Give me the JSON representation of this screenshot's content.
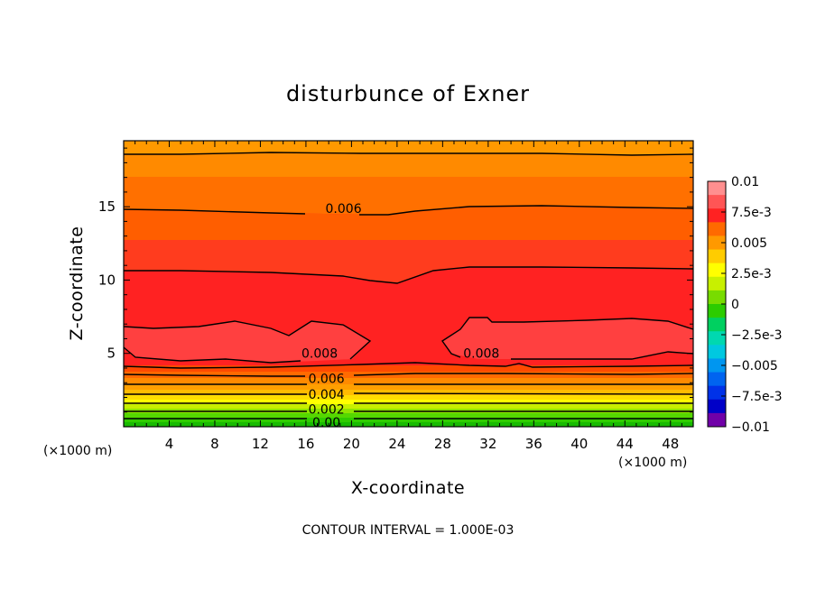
{
  "chart_data": {
    "type": "heatmap",
    "title": "disturbunce of Exner",
    "xlabel": "X-coordinate",
    "ylabel": "Z-coordinate",
    "x_unit": "(×1000 m)",
    "z_unit": "(×1000 m)",
    "xlim": [
      0,
      50
    ],
    "ylim": [
      0,
      19.5
    ],
    "x_ticks": [
      4,
      8,
      12,
      16,
      20,
      24,
      28,
      32,
      36,
      40,
      44,
      48
    ],
    "y_ticks": [
      5,
      10,
      15
    ],
    "colorbar": {
      "min": -0.01,
      "max": 0.01,
      "step": 0.00125,
      "tick_labels": [
        "0.01",
        "7.5e-3",
        "0.005",
        "2.5e-3",
        "0",
        "−2.5e-3",
        "−0.005",
        "−7.5e-3",
        "−0.01"
      ],
      "bands_top_to_bottom": [
        "#ff8f8f",
        "#ff5555",
        "#ff2222",
        "#ff6a00",
        "#ff9900",
        "#ffcc00",
        "#ffff00",
        "#c8f000",
        "#78dc00",
        "#2ccc00",
        "#00d060",
        "#00d8b0",
        "#00c8e0",
        "#0096f0",
        "#0064f0",
        "#0032e8",
        "#0000c8",
        "#7000a8"
      ]
    },
    "contour_levels": [
      0.0,
      0.001,
      0.002,
      0.003,
      0.004,
      0.005,
      0.006,
      0.007,
      0.008
    ],
    "contour_labels": [
      {
        "value": "0.006",
        "x": 19.3,
        "z": 14.9
      },
      {
        "value": "0.008",
        "x": 17.2,
        "z": 5.0
      },
      {
        "value": "0.008",
        "x": 31.4,
        "z": 5.0
      },
      {
        "value": "0.006",
        "x": 17.8,
        "z": 3.3
      },
      {
        "value": "0.004",
        "x": 17.8,
        "z": 2.2
      },
      {
        "value": "0.002",
        "x": 17.8,
        "z": 1.2
      },
      {
        "value": "0.00",
        "x": 17.8,
        "z": 0.3
      }
    ],
    "footer": "CONTOUR INTERVAL = 1.000E-03"
  }
}
